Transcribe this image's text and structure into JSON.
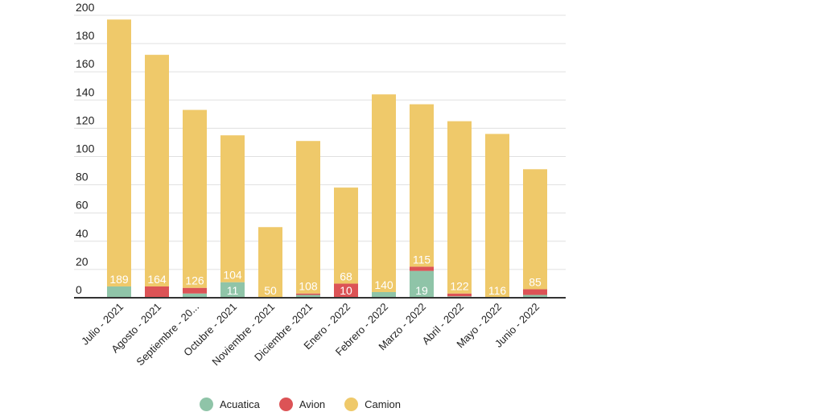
{
  "chart_data": {
    "type": "bar",
    "stacked": true,
    "categories": [
      "Julio - 2021",
      "Agosto - 2021",
      "Septiembre - 20...",
      "Octubre - 2021",
      "Noviembre - 2021",
      "Diciembre -2021",
      "Enero - 2022",
      "Febrero - 2022",
      "Marzo - 2022",
      "Abril - 2022",
      "Mayo - 2022",
      "Junio - 2022"
    ],
    "series": [
      {
        "name": "Acuatica",
        "color": "#8fc4a8",
        "values": [
          8,
          0,
          3,
          11,
          0,
          2,
          0,
          4,
          19,
          1,
          0,
          2
        ],
        "labels": [
          null,
          null,
          null,
          "11",
          null,
          null,
          null,
          null,
          "19",
          null,
          null,
          null
        ]
      },
      {
        "name": "Avion",
        "color": "#dc5356",
        "values": [
          0,
          8,
          4,
          0,
          0,
          1,
          10,
          0,
          3,
          2,
          0,
          4
        ],
        "labels": [
          null,
          null,
          null,
          null,
          null,
          null,
          "10",
          null,
          null,
          null,
          null,
          null
        ]
      },
      {
        "name": "Camion",
        "color": "#efc96a",
        "values": [
          189,
          164,
          126,
          104,
          50,
          108,
          68,
          140,
          115,
          122,
          116,
          85
        ],
        "labels": [
          "189",
          "164",
          "126",
          "104",
          "50",
          "108",
          "68",
          "140",
          "115",
          "122",
          "116",
          "85"
        ]
      }
    ],
    "yticks": [
      "0",
      "20",
      "40",
      "60",
      "80",
      "100",
      "120",
      "140",
      "160",
      "180",
      "200"
    ],
    "ylim": [
      0,
      200
    ],
    "grid": true,
    "legend": "bottom"
  }
}
